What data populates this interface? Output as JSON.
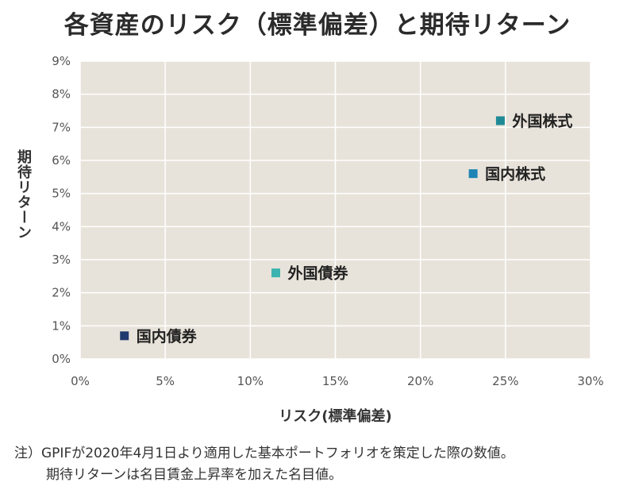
{
  "title": "各資産のリスク（標準偏差）と期待リターン",
  "note": {
    "line1": "注）GPIFが2020年4月1日より適用した基本ポートフォリオを策定した際の数値。",
    "line2": "期待リターンは名目賃金上昇率を加えた名目値。"
  },
  "colors": {
    "plot_bg": "#e8e3da",
    "grid": "#ffffff",
    "axis_text": "#555555",
    "label_text": "#222222"
  },
  "chart_data": {
    "type": "scatter",
    "title": "各資産のリスク（標準偏差）と期待リターン",
    "xlabel": "リスク(標準偏差)",
    "ylabel": "期待リターン",
    "xlim": [
      0,
      30
    ],
    "ylim": [
      0,
      9
    ],
    "x_ticks": [
      0,
      5,
      10,
      15,
      20,
      25,
      30
    ],
    "x_tick_labels": [
      "0%",
      "5%",
      "10%",
      "15%",
      "20%",
      "25%",
      "30%"
    ],
    "y_ticks": [
      0,
      1,
      2,
      3,
      4,
      5,
      6,
      7,
      8,
      9
    ],
    "y_tick_labels": [
      "0%",
      "1%",
      "2%",
      "3%",
      "4%",
      "5%",
      "6%",
      "7%",
      "8%",
      "9%"
    ],
    "grid": true,
    "points": [
      {
        "label": "国内債券",
        "x": 2.6,
        "y": 0.7,
        "color": "#1f3a6e"
      },
      {
        "label": "外国債券",
        "x": 11.5,
        "y": 2.6,
        "color": "#3bb3b0"
      },
      {
        "label": "国内株式",
        "x": 23.1,
        "y": 5.6,
        "color": "#1d84b5"
      },
      {
        "label": "外国株式",
        "x": 24.7,
        "y": 7.2,
        "color": "#1f8a96"
      }
    ]
  }
}
